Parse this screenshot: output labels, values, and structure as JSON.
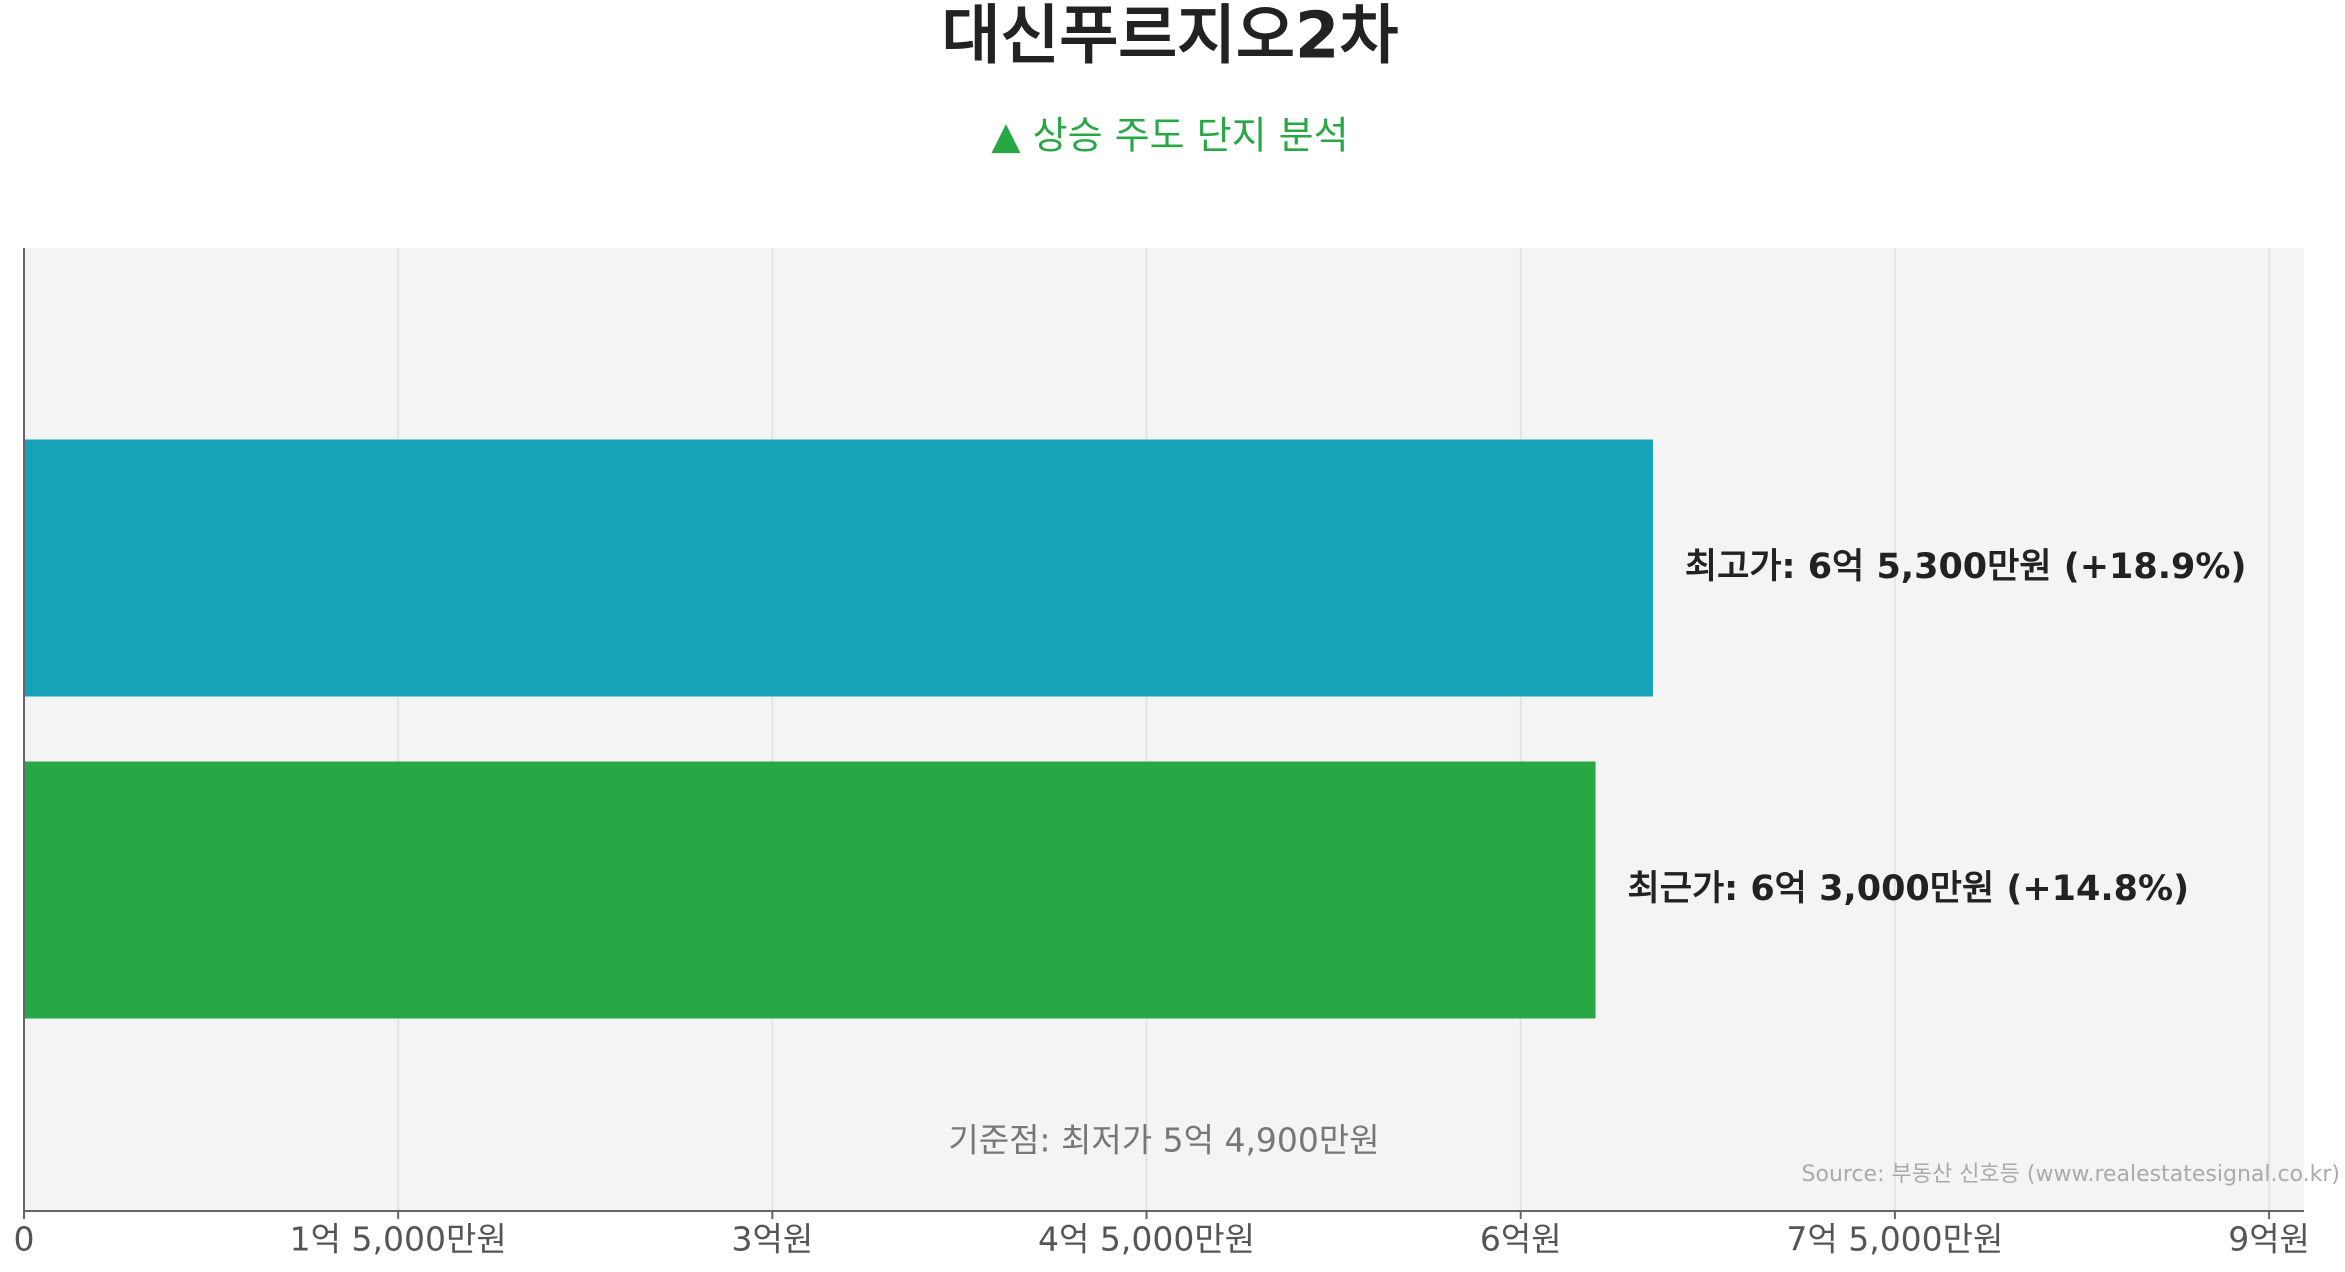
{
  "chart_data": {
    "type": "bar",
    "orientation": "horizontal",
    "title": "대신푸르지오2차",
    "subtitle": "▲ 상승 주도 단지 분석",
    "categories": [
      null,
      null
    ],
    "values": [
      653000000,
      630000000
    ],
    "value_labels": [
      "최고가: 6억 5,300만원 (+18.9%)",
      "최근가: 6억 3,000만원 (+14.8%)"
    ],
    "colors": [
      "#17a2b8",
      "#28a745"
    ],
    "xlim": [
      0,
      914000000
    ],
    "xticks": [
      0,
      {
        "value": 150000000,
        "label": "1억 5,000만원"
      },
      {
        "value": 300000000,
        "label": "3억원"
      },
      {
        "value": 450000000,
        "label": "4억 5,000만원"
      },
      {
        "value": 600000000,
        "label": "6억원"
      },
      {
        "value": 750000000,
        "label": "7억 5,000만원"
      },
      {
        "value": 900000000,
        "label": "9억원"
      }
    ],
    "grid": true,
    "annotation": "기준점: 최저가 5억 4,900만원",
    "source": "Source: 부동산 신호등 (www.realestatesignal.co.kr)"
  }
}
